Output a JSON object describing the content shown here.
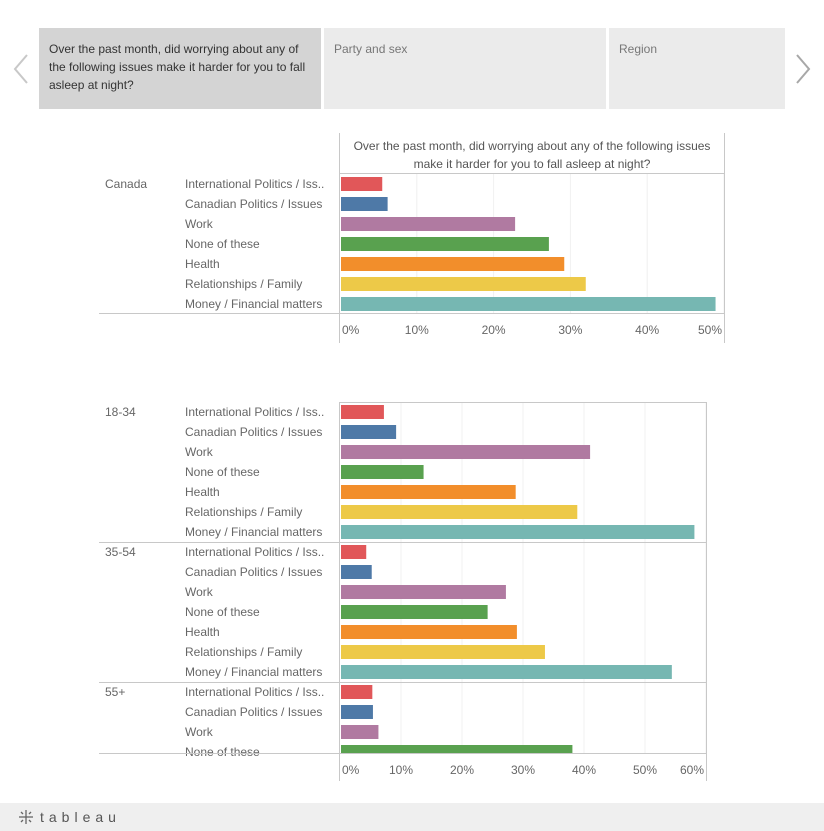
{
  "nav": {
    "prev_icon": "chevron-left-icon",
    "next_icon": "chevron-right-icon",
    "tabs": [
      {
        "label": "Over the past month, did worrying about any of the following issues make it harder for you to fall asleep at night?",
        "active": true
      },
      {
        "label": "Party and sex",
        "active": false
      },
      {
        "label": "Region",
        "active": false
      }
    ]
  },
  "colors": {
    "International Politics / Issues": "#e15759",
    "Canadian Politics / Issues": "#4e79a7",
    "Work": "#b07aa1",
    "None of these": "#59a14f",
    "Health": "#f28e2b",
    "Relationships / Family": "#edc948",
    "Money / Financial matters": "#76b7b2"
  },
  "chart_data": [
    {
      "type": "bar",
      "orientation": "horizontal",
      "title": "Over the past month, did worrying about any of the following issues make it harder for you to fall asleep at night?",
      "categories": [
        "International Politics / Iss..",
        "Canadian Politics / Issues",
        "Work",
        "None of these",
        "Health",
        "Relationships / Family",
        "Money / Financial matters"
      ],
      "xlim": [
        0,
        50
      ],
      "x_ticks": [
        "0%",
        "10%",
        "20%",
        "30%",
        "40%",
        "50%"
      ],
      "groups": [
        {
          "name": "Canada",
          "values": [
            5.5,
            6.2,
            22.8,
            27.2,
            29.2,
            32.0,
            48.9
          ]
        }
      ]
    },
    {
      "type": "bar",
      "orientation": "horizontal",
      "categories": [
        "International Politics / Iss..",
        "Canadian Politics / Issues",
        "Work",
        "None of these",
        "Health",
        "Relationships / Family",
        "Money / Financial matters"
      ],
      "xlim": [
        0,
        60
      ],
      "x_ticks": [
        "0%",
        "10%",
        "20%",
        "30%",
        "40%",
        "50%",
        "60%"
      ],
      "groups": [
        {
          "name": "18-34",
          "values": [
            7.2,
            9.2,
            41.0,
            13.7,
            28.8,
            38.9,
            58.1
          ]
        },
        {
          "name": "35-54",
          "values": [
            4.3,
            5.2,
            27.2,
            24.2,
            29.0,
            33.6,
            54.4
          ]
        },
        {
          "name": "55+",
          "values": [
            5.3,
            5.4,
            6.3,
            38.1,
            null,
            null,
            null
          ]
        }
      ]
    }
  ],
  "footer": {
    "brand": "tableau",
    "logo_icon": "tableau-logo-icon"
  }
}
